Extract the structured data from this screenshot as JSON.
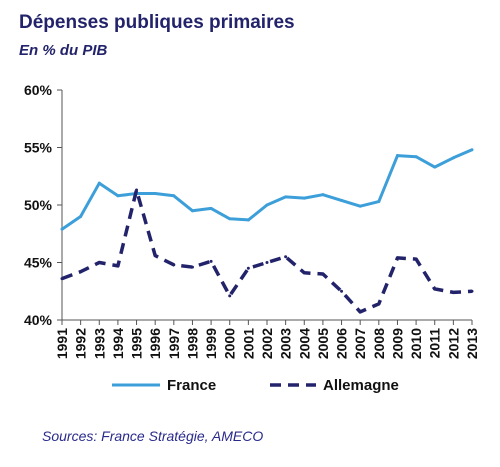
{
  "title": "Dépenses publiques primaires",
  "subtitle": "En % du PIB",
  "source": "Sources: France Stratégie, AMECO",
  "colors": {
    "title": "#23236b",
    "France": "#3d9fd9",
    "Allemagne": "#23236b"
  },
  "chart_data": {
    "type": "line",
    "x": [
      "1991",
      "1992",
      "1993",
      "1994",
      "1995",
      "1996",
      "1997",
      "1998",
      "1999",
      "2000",
      "2001",
      "2002",
      "2003",
      "2004",
      "2005",
      "2006",
      "2007",
      "2008",
      "2009",
      "2010",
      "2011",
      "2012",
      "2013"
    ],
    "ylim": [
      40,
      60
    ],
    "yticks": [
      "40%",
      "45%",
      "50%",
      "55%",
      "60%"
    ],
    "grid": false,
    "legend": "bottom",
    "series": [
      {
        "name": "France",
        "style": "solid",
        "values": [
          47.9,
          49.0,
          51.9,
          50.8,
          51.0,
          51.0,
          50.8,
          49.5,
          49.7,
          48.8,
          48.7,
          50.0,
          50.7,
          50.6,
          50.9,
          50.4,
          49.9,
          50.3,
          54.3,
          54.2,
          53.3,
          54.1,
          54.8
        ]
      },
      {
        "name": "Allemagne",
        "style": "dashed",
        "values": [
          43.6,
          44.2,
          45.0,
          44.7,
          51.3,
          45.6,
          44.8,
          44.6,
          45.1,
          42.1,
          44.5,
          45.0,
          45.5,
          44.1,
          44.0,
          42.5,
          40.7,
          41.4,
          45.4,
          45.3,
          42.7,
          42.4,
          42.5
        ]
      }
    ]
  }
}
